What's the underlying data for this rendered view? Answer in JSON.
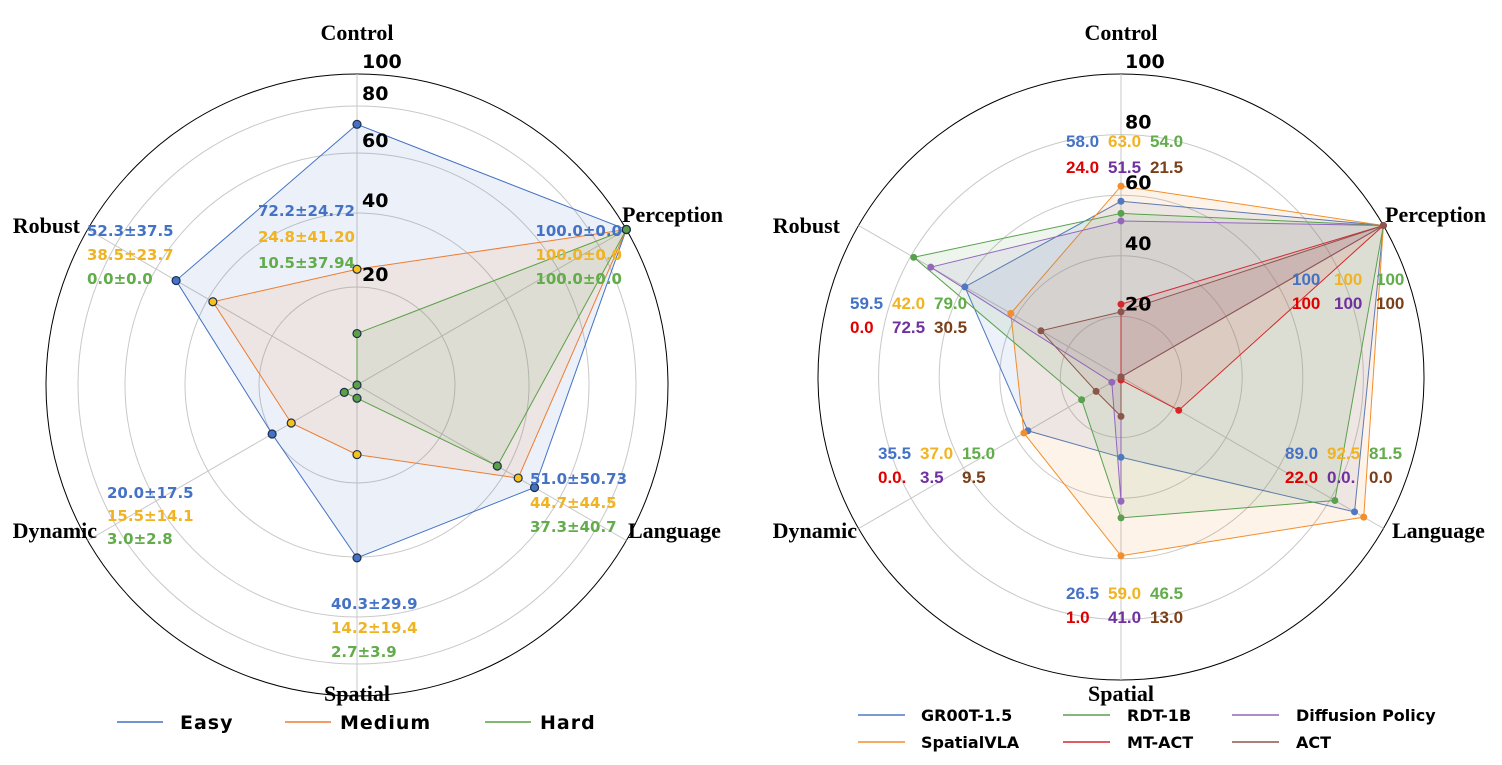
{
  "chart_data": [
    {
      "type": "radar",
      "axes": [
        "Control",
        "Perception",
        "Language",
        "Spatial",
        "Dynamic",
        "Robust"
      ],
      "rticks": [
        "20",
        "40",
        "60",
        "80",
        "100"
      ],
      "rtick_values": [
        20,
        40,
        60,
        80,
        100
      ],
      "rlim": [
        0,
        100
      ],
      "grid": true,
      "legend_placement": "bottom",
      "series": [
        {
          "name": "Easy",
          "color": "#4472c4",
          "marker_color": "#4472c4",
          "text_color": "#4472c4",
          "values": [
            72.2,
            100.0,
            51.0,
            40.3,
            20.0,
            52.3
          ]
        },
        {
          "name": "Medium",
          "color": "#ed7d31",
          "marker_color": "#f5c21b",
          "text_color": "#f0b323",
          "values": [
            24.8,
            100.0,
            44.7,
            14.2,
            15.5,
            38.5
          ]
        },
        {
          "name": "Hard",
          "color": "#5aa145",
          "marker_color": "#5aa145",
          "text_color": "#62ac4b",
          "values": [
            10.5,
            100.0,
            37.3,
            2.7,
            3.0,
            0.0
          ]
        }
      ],
      "annotations": {
        "Control": [
          "72.2±24.72",
          "24.8±41.20",
          "10.5±37.94"
        ],
        "Perception": [
          "100.0±0.0",
          "100.0±0.0",
          "100.0±0.0"
        ],
        "Language": [
          "51.0±50.73",
          "44.7±44.5",
          "37.3±40.7"
        ],
        "Spatial": [
          "40.3±29.9",
          "14.2±19.4",
          "2.7±3.9"
        ],
        "Dynamic": [
          "20.0±17.5",
          "15.5±14.1",
          "3.0±2.8"
        ],
        "Robust": [
          "52.3±37.5",
          "38.5±23.7",
          "0.0±0.0"
        ]
      }
    },
    {
      "type": "radar",
      "axes": [
        "Control",
        "Perception",
        "Language",
        "Spatial",
        "Dynamic",
        "Robust"
      ],
      "rticks": [
        "20",
        "40",
        "60",
        "80",
        "100"
      ],
      "rtick_values": [
        20,
        40,
        60,
        80,
        100
      ],
      "rlim": [
        0,
        100
      ],
      "grid": true,
      "legend_placement": "bottom",
      "series": [
        {
          "name": "GR00T-1.5",
          "color": "#4e79c0",
          "text_color": "#4472c4",
          "values": [
            58.0,
            100,
            89.0,
            26.5,
            35.5,
            59.5
          ]
        },
        {
          "name": "SpatialVLA",
          "color": "#f28e2b",
          "text_color": "#f0b323",
          "values": [
            63.0,
            100,
            92.5,
            59.0,
            37.0,
            42.0
          ]
        },
        {
          "name": "RDT-1B",
          "color": "#59a14f",
          "text_color": "#62ac4b",
          "values": [
            54.0,
            100,
            81.5,
            46.5,
            15.0,
            79.0
          ]
        },
        {
          "name": "MT-ACT",
          "color": "#d62728",
          "text_color": "#e00000",
          "values": [
            24.0,
            100,
            22.0,
            1.0,
            0.0,
            0.0
          ]
        },
        {
          "name": "Diffusion Policy",
          "color": "#9467bd",
          "text_color": "#7030a0",
          "values": [
            51.5,
            100,
            0.0,
            41.0,
            3.5,
            72.5
          ]
        },
        {
          "name": "ACT",
          "color": "#8c564b",
          "text_color": "#7b3f1a",
          "values": [
            21.5,
            100,
            0.0,
            13.0,
            9.5,
            30.5
          ]
        }
      ],
      "legend_order": [
        "GR00T-1.5",
        "RDT-1B",
        "Diffusion Policy",
        "SpatialVLA",
        "MT-ACT",
        "ACT"
      ],
      "annotations": {
        "Control": [
          "58.0",
          "63.0",
          "54.0",
          "24.0",
          "51.5",
          "21.5"
        ],
        "Perception": [
          "100",
          "100",
          "100",
          "100",
          "100",
          "100"
        ],
        "Language": [
          "89.0",
          "92.5",
          "81.5",
          "22.0",
          "0.0.",
          "0.0"
        ],
        "Spatial": [
          "26.5",
          "59.0",
          "46.5",
          "1.0",
          "41.0",
          "13.0"
        ],
        "Dynamic": [
          "35.5",
          "37.0",
          "15.0",
          "0.0.",
          "3.5",
          "9.5"
        ],
        "Robust": [
          "59.5",
          "42.0",
          "79.0",
          "0.0",
          "72.5",
          "30.5"
        ]
      }
    }
  ]
}
